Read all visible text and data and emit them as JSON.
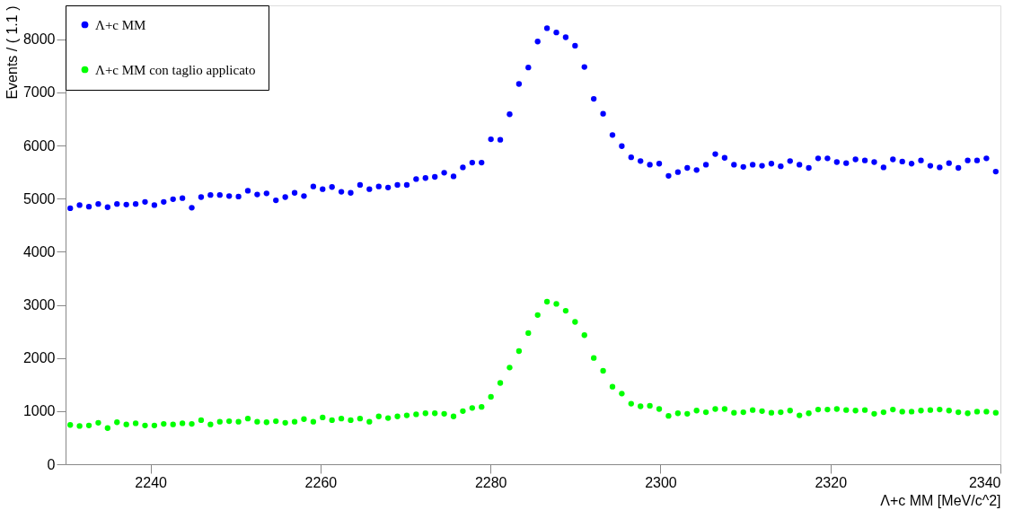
{
  "chart_data": {
    "type": "scatter",
    "xlabel": "Λ+c MM [MeV/c^2]",
    "ylabel": "Events / ( 1.1 )",
    "x": [
      2230.55,
      2231.65,
      2232.75,
      2233.85,
      2234.95,
      2236.05,
      2237.15,
      2238.25,
      2239.35,
      2240.45,
      2241.55,
      2242.65,
      2243.75,
      2244.85,
      2245.95,
      2247.05,
      2248.15,
      2249.25,
      2250.35,
      2251.45,
      2252.55,
      2253.65,
      2254.75,
      2255.85,
      2256.95,
      2258.05,
      2259.15,
      2260.25,
      2261.35,
      2262.45,
      2263.55,
      2264.65,
      2265.75,
      2266.85,
      2267.95,
      2269.05,
      2270.15,
      2271.25,
      2272.35,
      2273.45,
      2274.55,
      2275.65,
      2276.75,
      2277.85,
      2278.95,
      2280.05,
      2281.15,
      2282.25,
      2283.35,
      2284.45,
      2285.55,
      2286.65,
      2287.75,
      2288.85,
      2289.95,
      2291.05,
      2292.15,
      2293.25,
      2294.35,
      2295.45,
      2296.55,
      2297.65,
      2298.75,
      2299.85,
      2300.95,
      2302.05,
      2303.15,
      2304.25,
      2305.35,
      2306.45,
      2307.55,
      2308.65,
      2309.75,
      2310.85,
      2311.95,
      2313.05,
      2314.15,
      2315.25,
      2316.35,
      2317.45,
      2318.55,
      2319.65,
      2320.75,
      2321.85,
      2322.95,
      2324.05,
      2325.15,
      2326.25,
      2327.35,
      2328.45,
      2329.55,
      2330.65,
      2331.75,
      2332.85,
      2333.95,
      2335.05,
      2336.15,
      2337.25,
      2338.35,
      2339.45
    ],
    "series": [
      {
        "name": "Λ+c MM",
        "color": "#0000ff",
        "values": [
          4820,
          4880,
          4850,
          4900,
          4840,
          4900,
          4890,
          4900,
          4940,
          4880,
          4940,
          4990,
          5010,
          4830,
          5030,
          5070,
          5070,
          5050,
          5040,
          5150,
          5080,
          5100,
          4970,
          5030,
          5110,
          5050,
          5230,
          5180,
          5220,
          5130,
          5110,
          5260,
          5180,
          5230,
          5210,
          5260,
          5260,
          5370,
          5390,
          5410,
          5490,
          5420,
          5590,
          5680,
          5680,
          6120,
          6110,
          6590,
          7160,
          7470,
          7960,
          8210,
          8130,
          8040,
          7880,
          7480,
          6880,
          6600,
          6200,
          5990,
          5780,
          5710,
          5640,
          5660,
          5430,
          5500,
          5580,
          5540,
          5640,
          5840,
          5770,
          5640,
          5600,
          5640,
          5620,
          5660,
          5610,
          5710,
          5640,
          5580,
          5760,
          5760,
          5690,
          5670,
          5740,
          5720,
          5690,
          5590,
          5740,
          5700,
          5660,
          5720,
          5620,
          5590,
          5670,
          5580,
          5720,
          5720,
          5760,
          5510
        ]
      },
      {
        "name": "Λ+c MM con taglio applicato",
        "color": "#00ff00",
        "values": [
          740,
          720,
          730,
          780,
          680,
          790,
          750,
          770,
          730,
          730,
          760,
          750,
          770,
          760,
          830,
          750,
          800,
          810,
          800,
          860,
          800,
          790,
          810,
          780,
          800,
          850,
          800,
          880,
          830,
          860,
          830,
          860,
          800,
          900,
          870,
          900,
          920,
          940,
          960,
          960,
          950,
          900,
          1000,
          1060,
          1080,
          1270,
          1530,
          1820,
          2130,
          2470,
          2810,
          3060,
          3020,
          2890,
          2680,
          2430,
          2000,
          1760,
          1460,
          1330,
          1140,
          1090,
          1100,
          1040,
          910,
          960,
          950,
          1010,
          980,
          1040,
          1040,
          970,
          980,
          1020,
          1000,
          970,
          980,
          1010,
          920,
          960,
          1030,
          1030,
          1040,
          1020,
          1010,
          1020,
          950,
          980,
          1030,
          990,
          990,
          1010,
          1020,
          1030,
          1010,
          980,
          960,
          990,
          990,
          970
        ]
      }
    ],
    "xlim": [
      2230,
      2340
    ],
    "xticks": [
      2240,
      2260,
      2280,
      2300,
      2320,
      2340
    ],
    "ylim": [
      0,
      8640
    ],
    "yticks": [
      0,
      1000,
      2000,
      3000,
      4000,
      5000,
      6000,
      7000,
      8000
    ],
    "grid": false,
    "legend": "top left",
    "marker": "circle"
  }
}
